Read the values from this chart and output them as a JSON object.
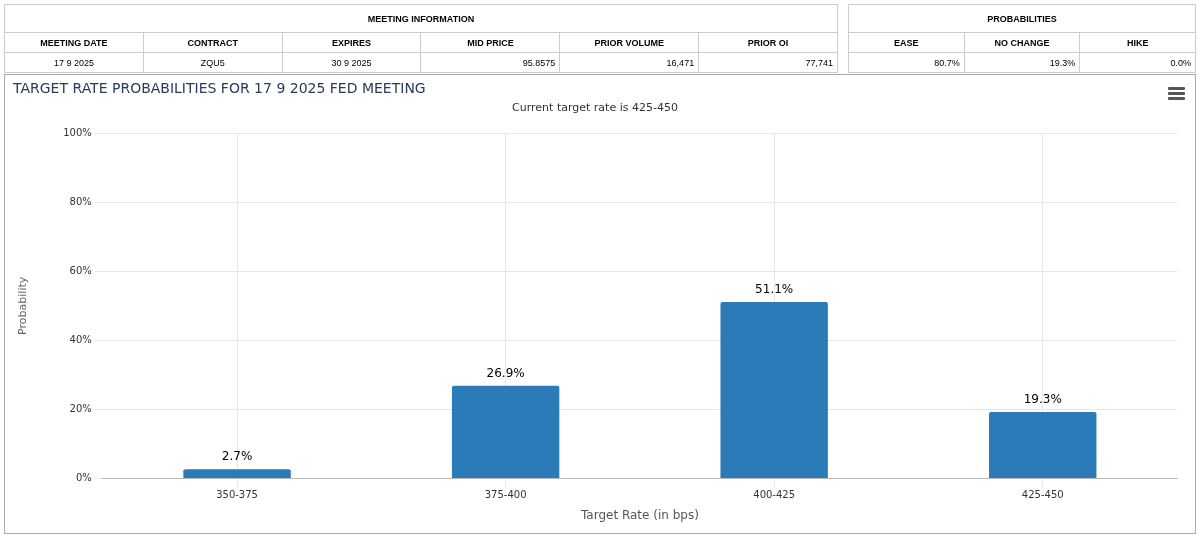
{
  "chart_data": [
    {
      "type": "other",
      "title": "MEETING INFORMATION",
      "categories": [
        "MEETING DATE",
        "CONTRACT",
        "EXPIRES",
        "MID PRICE",
        "PRIOR VOLUME",
        "PRIOR OI"
      ],
      "annotations": [
        "17 9 2025",
        "ZQU5",
        "30 9 2025",
        "95.8575",
        "16,471",
        "77,741"
      ]
    },
    {
      "type": "other",
      "title": "PROBABILITIES",
      "categories": [
        "EASE",
        "NO CHANGE",
        "HIKE"
      ],
      "annotations": [
        "80.7%",
        "19.3%",
        "0.0%"
      ]
    },
    {
      "type": "bar",
      "title": "TARGET RATE PROBABILITIES FOR 17 9 2025 FED MEETING",
      "subtitle": "Current target rate is 425-450",
      "xlabel": "Target Rate (in bps)",
      "ylabel": "Probability",
      "categories": [
        "350-375",
        "375-400",
        "400-425",
        "425-450"
      ],
      "values": [
        2.7,
        26.9,
        51.1,
        19.3
      ],
      "color": "#2b7bb9",
      "value_labels": [
        "2.7%",
        "26.9%",
        "51.1%",
        "19.3%"
      ],
      "ylim": [
        0,
        100
      ],
      "yticks": [
        {
          "value": 0,
          "label": "0%"
        },
        {
          "value": 20,
          "label": "20%"
        },
        {
          "value": 40,
          "label": "40%"
        },
        {
          "value": 60,
          "label": "60%"
        },
        {
          "value": 80,
          "label": "80%"
        },
        {
          "value": 100,
          "label": "100%"
        }
      ],
      "grid": true,
      "legend": false
    }
  ]
}
